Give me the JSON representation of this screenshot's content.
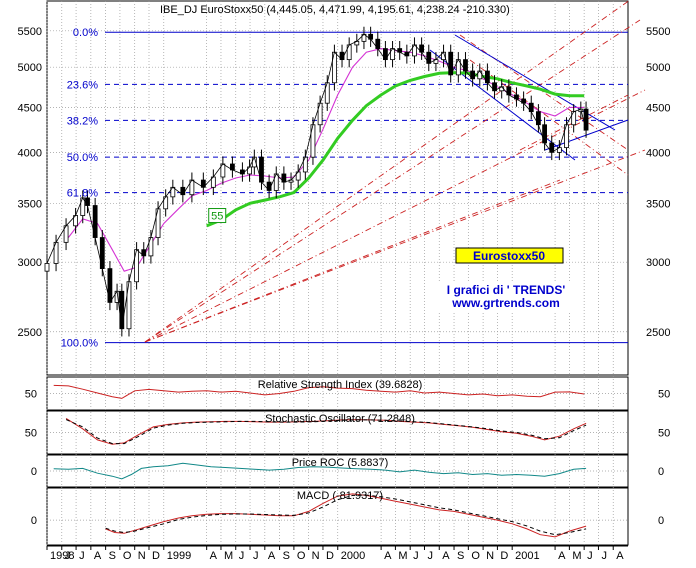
{
  "chart_data": {
    "type": "line",
    "title": "IBE_DJ EuroStoxx50 (4,445.05, 4,471.99, 4,195.61, 4,238.24 -210.330)",
    "y_scale": "log",
    "ylim": [
      2250,
      5900
    ],
    "y_ticks": [
      2500,
      3000,
      3500,
      4000,
      4500,
      5000,
      5500
    ],
    "x_ticks": [
      {
        "label": "1998",
        "date": "1998-05-01"
      },
      {
        "label": "J",
        "date": "1998-06-01"
      },
      {
        "label": "J",
        "date": "1998-07-01"
      },
      {
        "label": "A",
        "date": "1998-08-01"
      },
      {
        "label": "S",
        "date": "1998-09-01"
      },
      {
        "label": "O",
        "date": "1998-10-01"
      },
      {
        "label": "N",
        "date": "1998-11-01"
      },
      {
        "label": "D",
        "date": "1998-12-01"
      },
      {
        "label": "1999",
        "date": "1999-01-01"
      },
      {
        "label": "A",
        "date": "1999-04-01"
      },
      {
        "label": "M",
        "date": "1999-05-01"
      },
      {
        "label": "J",
        "date": "1999-06-01"
      },
      {
        "label": "J",
        "date": "1999-07-01"
      },
      {
        "label": "A",
        "date": "1999-08-01"
      },
      {
        "label": "S",
        "date": "1999-09-01"
      },
      {
        "label": "O",
        "date": "1999-10-01"
      },
      {
        "label": "N",
        "date": "1999-11-01"
      },
      {
        "label": "D",
        "date": "1999-12-01"
      },
      {
        "label": "2000",
        "date": "2000-01-01"
      },
      {
        "label": "A",
        "date": "2000-04-01"
      },
      {
        "label": "M",
        "date": "2000-05-01"
      },
      {
        "label": "J",
        "date": "2000-06-01"
      },
      {
        "label": "J",
        "date": "2000-07-01"
      },
      {
        "label": "A",
        "date": "2000-08-01"
      },
      {
        "label": "S",
        "date": "2000-09-01"
      },
      {
        "label": "O",
        "date": "2000-10-01"
      },
      {
        "label": "N",
        "date": "2000-11-01"
      },
      {
        "label": "D",
        "date": "2000-12-01"
      },
      {
        "label": "2001",
        "date": "2001-01-01"
      },
      {
        "label": "A",
        "date": "2001-04-01"
      },
      {
        "label": "M",
        "date": "2001-05-01"
      },
      {
        "label": "J",
        "date": "2001-06-01"
      },
      {
        "label": "J",
        "date": "2001-07-01"
      },
      {
        "label": "A",
        "date": "2001-08-01"
      }
    ],
    "fib_levels": [
      {
        "label": "0.0%",
        "value": 5480,
        "style": "solid"
      },
      {
        "label": "23.6%",
        "value": 4780,
        "style": "dashed"
      },
      {
        "label": "38.2%",
        "value": 4350,
        "style": "dashed"
      },
      {
        "label": "50.0%",
        "value": 3950,
        "style": "dashed"
      },
      {
        "label": "61.8%",
        "value": 3600,
        "style": "dashed"
      },
      {
        "label": "100.0%",
        "value": 2430,
        "style": "solid"
      }
    ],
    "price": {
      "dates": [
        "1998-05-01",
        "1998-05-20",
        "1998-06-10",
        "1998-06-30",
        "1998-07-15",
        "1998-07-25",
        "1998-08-10",
        "1998-08-25",
        "1998-09-10",
        "1998-09-25",
        "1998-10-05",
        "1998-10-20",
        "1998-11-05",
        "1998-11-20",
        "1998-12-05",
        "1998-12-20",
        "1999-01-05",
        "1999-01-20",
        "1999-02-10",
        "1999-03-01",
        "1999-03-25",
        "1999-04-15",
        "1999-05-05",
        "1999-05-25",
        "1999-06-15",
        "1999-06-30",
        "1999-07-10",
        "1999-07-25",
        "1999-08-10",
        "1999-08-25",
        "1999-09-10",
        "1999-09-25",
        "1999-10-10",
        "1999-10-25",
        "1999-11-10",
        "1999-11-25",
        "1999-12-10",
        "1999-12-25",
        "2000-01-10",
        "2000-01-25",
        "2000-02-10",
        "2000-02-25",
        "2000-03-10",
        "2000-03-25",
        "2000-04-10",
        "2000-04-25",
        "2000-05-10",
        "2000-05-25",
        "2000-06-10",
        "2000-06-25",
        "2000-07-10",
        "2000-07-25",
        "2000-08-10",
        "2000-08-25",
        "2000-09-10",
        "2000-09-25",
        "2000-10-10",
        "2000-10-25",
        "2000-11-10",
        "2000-11-25",
        "2000-12-10",
        "2000-12-25",
        "2001-01-10",
        "2001-01-25",
        "2001-02-10",
        "2001-02-25",
        "2001-03-10",
        "2001-03-25",
        "2001-04-10",
        "2001-04-25",
        "2001-05-10",
        "2001-05-25",
        "2001-06-05"
      ],
      "close": [
        2990,
        3160,
        3300,
        3390,
        3550,
        3480,
        3200,
        2950,
        2700,
        2780,
        2520,
        2850,
        3100,
        3050,
        3200,
        3450,
        3560,
        3650,
        3580,
        3720,
        3650,
        3750,
        3880,
        3820,
        3780,
        3850,
        3950,
        3700,
        3620,
        3780,
        3700,
        3720,
        3800,
        3950,
        4300,
        4550,
        4800,
        5200,
        5100,
        5300,
        5350,
        5450,
        5380,
        5250,
        5100,
        5250,
        5200,
        5150,
        5300,
        5200,
        5050,
        5100,
        5200,
        4900,
        5100,
        4950,
        4850,
        4950,
        4800,
        4700,
        4750,
        4650,
        4600,
        4550,
        4450,
        4300,
        4100,
        4000,
        4050,
        4300,
        4450,
        4480,
        4240
      ]
    },
    "ma_pink": {
      "dates": [
        "1998-06-15",
        "1998-07-15",
        "1998-08-15",
        "1998-09-15",
        "1998-10-10",
        "1998-11-05",
        "1998-12-01",
        "1999-01-01",
        "1999-02-01",
        "1999-03-01",
        "1999-04-01",
        "1999-05-01",
        "1999-06-01",
        "1999-07-01",
        "1999-08-01",
        "1999-09-01",
        "1999-10-01",
        "1999-11-01",
        "1999-12-01",
        "2000-01-01",
        "2000-02-01",
        "2000-03-01",
        "2000-04-01",
        "2000-05-01",
        "2000-06-01",
        "2000-07-01",
        "2000-08-01",
        "2000-09-01",
        "2000-10-01",
        "2000-11-01",
        "2000-12-01",
        "2001-01-01",
        "2001-02-01",
        "2001-03-01",
        "2001-04-01",
        "2001-05-01",
        "2001-06-01"
      ],
      "values": [
        3200,
        3360,
        3320,
        3100,
        2930,
        2960,
        3120,
        3320,
        3450,
        3570,
        3620,
        3690,
        3740,
        3770,
        3760,
        3740,
        3750,
        3920,
        4250,
        4650,
        5000,
        5200,
        5250,
        5220,
        5200,
        5150,
        5080,
        5000,
        4950,
        4850,
        4750,
        4650,
        4550,
        4450,
        4400,
        4500,
        4500
      ]
    },
    "ma_55": {
      "label": "55",
      "dates": [
        "1999-04-01",
        "1999-05-01",
        "1999-06-01",
        "1999-07-01",
        "1999-08-01",
        "1999-09-01",
        "1999-10-01",
        "1999-11-01",
        "1999-12-01",
        "2000-01-01",
        "2000-02-01",
        "2000-03-01",
        "2000-04-01",
        "2000-05-01",
        "2000-06-01",
        "2000-07-01",
        "2000-08-01",
        "2000-09-01",
        "2000-10-01",
        "2000-11-01",
        "2000-12-01",
        "2001-01-01",
        "2001-02-01",
        "2001-03-01",
        "2001-04-01",
        "2001-05-01",
        "2001-06-01"
      ],
      "values": [
        3300,
        3350,
        3440,
        3500,
        3530,
        3560,
        3600,
        3740,
        3920,
        4150,
        4350,
        4520,
        4650,
        4760,
        4830,
        4880,
        4920,
        4930,
        4920,
        4880,
        4850,
        4800,
        4760,
        4720,
        4660,
        4640,
        4640
      ]
    },
    "annotations": {
      "badge": "Eurostoxx50",
      "credit_line1": "I grafici di   ' TRENDS'",
      "credit_line2": "www.grtrends.com"
    },
    "indicators": [
      {
        "name": "Relative Strength Index",
        "label": "Relative Strength Index (39.6828)",
        "value": 39.6828,
        "tick": "50",
        "range": [
          0,
          100
        ],
        "dates": [
          "1998-05-15",
          "1998-06-15",
          "1998-07-15",
          "1998-08-15",
          "1998-09-15",
          "1998-10-05",
          "1998-11-01",
          "1998-12-01",
          "1999-01-01",
          "1999-02-01",
          "1999-03-01",
          "1999-04-01",
          "1999-05-01",
          "1999-06-01",
          "1999-07-01",
          "1999-08-01",
          "1999-09-01",
          "1999-10-01",
          "1999-11-01",
          "1999-12-01",
          "2000-01-01",
          "2000-02-01",
          "2000-03-01",
          "2000-04-01",
          "2000-05-01",
          "2000-06-01",
          "2000-07-01",
          "2000-08-01",
          "2000-09-01",
          "2000-10-01",
          "2000-11-01",
          "2000-12-01",
          "2001-01-01",
          "2001-02-01",
          "2001-03-01",
          "2001-04-01",
          "2001-05-01",
          "2001-06-01"
        ],
        "values": [
          80,
          78,
          66,
          52,
          38,
          32,
          60,
          65,
          60,
          55,
          58,
          60,
          55,
          58,
          52,
          45,
          50,
          58,
          72,
          75,
          70,
          68,
          62,
          58,
          55,
          60,
          52,
          55,
          50,
          45,
          48,
          42,
          45,
          40,
          38,
          55,
          56,
          48
        ]
      },
      {
        "name": "Stochastic Oscillator",
        "label": "Stochastic Oscillator (71.2848)",
        "value": 71.2848,
        "tick": "50",
        "range": [
          0,
          100
        ],
        "k_dates": [
          "1998-06-10",
          "1998-07-15",
          "1998-08-15",
          "1998-09-15",
          "1998-10-10",
          "1998-11-10",
          "1998-12-10",
          "1999-01-10",
          "1999-02-10",
          "1999-03-10",
          "1999-04-10",
          "1999-05-10",
          "1999-06-10",
          "1999-07-10",
          "1999-08-10",
          "1999-09-10",
          "1999-10-10",
          "1999-11-10",
          "1999-12-10",
          "2000-01-10",
          "2000-02-10",
          "2000-03-10",
          "2000-04-10",
          "2000-05-10",
          "2000-06-10",
          "2000-07-10",
          "2000-08-10",
          "2000-09-10",
          "2000-10-10",
          "2000-11-10",
          "2000-12-10",
          "2001-01-10",
          "2001-02-10",
          "2001-03-10",
          "2001-04-10",
          "2001-05-10",
          "2001-06-05"
        ],
        "k": [
          88,
          60,
          30,
          18,
          22,
          45,
          65,
          72,
          76,
          78,
          79,
          80,
          80,
          79,
          78,
          78,
          79,
          80,
          82,
          84,
          85,
          84,
          83,
          80,
          78,
          76,
          72,
          68,
          64,
          58,
          52,
          48,
          40,
          30,
          40,
          60,
          75
        ],
        "d": [
          85,
          65,
          35,
          20,
          20,
          40,
          62,
          70,
          75,
          77,
          78,
          79,
          80,
          80,
          79,
          78,
          78,
          79,
          81,
          83,
          84,
          84,
          83,
          81,
          79,
          77,
          73,
          69,
          65,
          60,
          54,
          50,
          43,
          33,
          36,
          55,
          70
        ]
      },
      {
        "name": "Price ROC",
        "label": "Price ROC (5.8837)",
        "value": 5.8837,
        "tick": "0",
        "range": [
          -30,
          30
        ],
        "dates": [
          "1998-05-15",
          "1998-06-15",
          "1998-07-15",
          "1998-08-15",
          "1998-09-15",
          "1998-10-05",
          "1998-10-25",
          "1998-11-15",
          "1998-12-10",
          "1999-01-10",
          "1999-02-10",
          "1999-03-10",
          "1999-04-10",
          "1999-05-10",
          "1999-06-10",
          "1999-07-10",
          "1999-08-10",
          "1999-09-10",
          "1999-10-10",
          "1999-11-10",
          "1999-12-10",
          "2000-01-10",
          "2000-02-10",
          "2000-03-10",
          "2000-04-10",
          "2000-05-10",
          "2000-06-10",
          "2000-07-10",
          "2000-08-10",
          "2000-09-10",
          "2000-10-10",
          "2000-11-10",
          "2000-12-10",
          "2001-01-10",
          "2001-02-10",
          "2001-03-10",
          "2001-04-10",
          "2001-05-10",
          "2001-06-05"
        ],
        "values": [
          5,
          4,
          6,
          -5,
          -12,
          -18,
          -8,
          6,
          10,
          12,
          18,
          14,
          10,
          8,
          6,
          4,
          2,
          4,
          8,
          10,
          9,
          7,
          5,
          4,
          2,
          -2,
          2,
          -3,
          -6,
          -4,
          -8,
          -6,
          -10,
          -8,
          -10,
          -12,
          -6,
          4,
          6
        ]
      },
      {
        "name": "MACD",
        "label": "MACD (-81.9317)",
        "value": -81.9317,
        "tick": "0",
        "range": [
          -300,
          400
        ],
        "dates": [
          "1998-09-01",
          "1998-09-20",
          "1998-10-10",
          "1998-11-01",
          "1998-12-01",
          "1999-01-01",
          "1999-02-01",
          "1999-03-01",
          "1999-04-01",
          "1999-05-01",
          "1999-06-01",
          "1999-07-01",
          "1999-08-01",
          "1999-09-01",
          "1999-10-01",
          "1999-11-01",
          "1999-12-01",
          "2000-01-01",
          "2000-02-01",
          "2000-03-01",
          "2000-04-01",
          "2000-05-01",
          "2000-06-01",
          "2000-07-01",
          "2000-08-01",
          "2000-09-01",
          "2000-10-01",
          "2000-11-01",
          "2000-12-01",
          "2001-01-01",
          "2001-02-01",
          "2001-03-01",
          "2001-04-01",
          "2001-05-01",
          "2001-06-05"
        ],
        "macd": [
          -120,
          -170,
          -180,
          -140,
          -80,
          -20,
          30,
          60,
          80,
          90,
          90,
          80,
          70,
          60,
          60,
          120,
          230,
          330,
          360,
          340,
          300,
          260,
          220,
          180,
          140,
          120,
          80,
          40,
          0,
          -50,
          -120,
          -200,
          -230,
          -150,
          -82
        ],
        "signal": [
          -110,
          -150,
          -170,
          -150,
          -100,
          -50,
          10,
          40,
          65,
          80,
          85,
          85,
          78,
          70,
          65,
          100,
          180,
          280,
          340,
          345,
          320,
          290,
          250,
          210,
          170,
          140,
          100,
          60,
          20,
          -20,
          -80,
          -150,
          -200,
          -170,
          -120
        ]
      }
    ]
  }
}
